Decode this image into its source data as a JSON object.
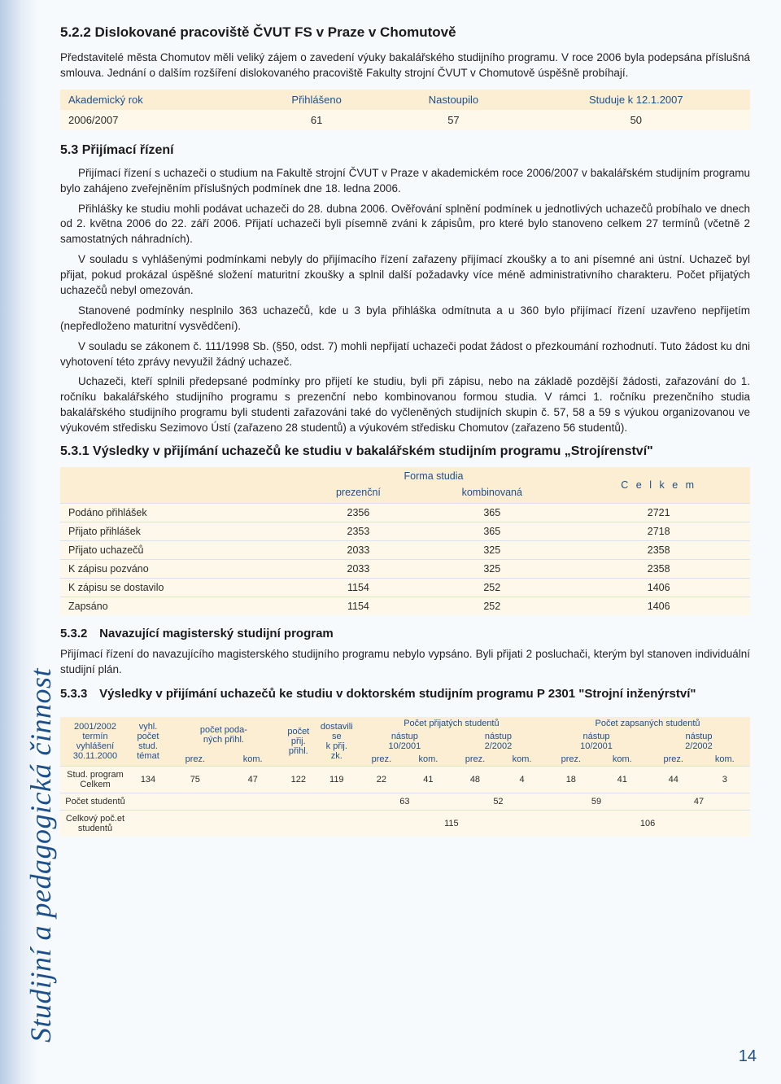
{
  "section522": {
    "title": "5.2.2 Dislokované pracoviště ČVUT FS v Praze v Chomutově",
    "p1": "Představitelé města Chomutov měli veliký zájem o zavedení výuky bakalářského studijního programu. V roce 2006 byla podepsána příslušná smlouva. Jednání o dalším rozšíření dislokovaného pracoviště Fakulty strojní ČVUT v Chomutově úspěšně probíhají."
  },
  "table1": {
    "headers": [
      "Akademický rok",
      "Přihlášeno",
      "Nastoupilo",
      "Studuje k 12.1.2007"
    ],
    "row": [
      "2006/2007",
      "61",
      "57",
      "50"
    ],
    "header_bg": "#fceed3",
    "body_bg": "#fdf8e9",
    "header_color": "#1d4f8b"
  },
  "section53": {
    "title": "5.3 Přijímací řízení",
    "p1": "Přijímací řízení s uchazeči o studium na Fakultě strojní ČVUT v Praze v akademickém roce 2006/2007 v bakalářském studijním programu bylo zahájeno zveřejněním příslušných podmínek dne 18. ledna 2006.",
    "p2": "Přihlášky ke studiu mohli podávat uchazeči do 28. dubna 2006. Ověřování splnění podmínek u jednotlivých uchazečů probíhalo ve dnech od 2. května 2006 do 22. září 2006. Přijatí uchazeči byli písemně zváni k zápisům, pro které bylo stanoveno celkem 27 termínů (včetně 2 samostatných náhradních).",
    "p3": "V souladu s vyhlášenými podmínkami nebyly do přijímacího řízení zařazeny přijímací zkoušky a to ani písemné ani ústní. Uchazeč byl přijat, pokud prokázal úspěšné složení maturitní zkoušky a splnil další požadavky více méně administrativního charakteru. Počet přijatých uchazečů nebyl omezován.",
    "p4": "Stanovené podmínky nesplnilo 363 uchazečů, kde u 3 byla přihláška odmítnuta a u 360 bylo přijímací řízení uzavřeno nepřijetím (nepředloženo maturitní vysvědčení).",
    "p5": "V souladu se zákonem č. 111/1998 Sb. (§50, odst. 7) mohli nepřijatí uchazeči podat žádost o přezkoumání rozhodnutí. Tuto žádost ku dni vyhotovení této zprávy nevyužil žádný uchazeč.",
    "p6": "Uchazeči, kteří splnili předepsané podmínky pro přijetí ke studiu, byli při zápisu, nebo na základě pozdější žádosti, zařazování do 1. ročníku bakalářského studijního programu s prezenční nebo kombinovanou formou studia. V rámci 1. ročníku prezenčního studia bakalářského studijního programu byli studenti zařazováni také do vyčleněných studijních skupin č. 57, 58 a 59 s výukou organizovanou ve výukovém středisku Sezimovo Ústí (zařazeno 28 studentů) a výukovém středisku Chomutov (zařazeno 56 studentů)."
  },
  "section531": {
    "title": "5.3.1 Výsledky v přijímání uchazečů ke studiu v bakalářském studijním programu „Strojírenství\""
  },
  "table2": {
    "group_label": "Forma studia",
    "celkem_label": "C e l k e m",
    "sub_headers": [
      "prezenční",
      "kombinovaná"
    ],
    "rows": [
      {
        "label": "Podáno přihlášek",
        "prez": "2356",
        "komb": "365",
        "cel": "2721"
      },
      {
        "label": "Přijato přihlášek",
        "prez": "2353",
        "komb": "365",
        "cel": "2718"
      },
      {
        "label": "Přijato uchazečů",
        "prez": "2033",
        "komb": "325",
        "cel": "2358"
      },
      {
        "label": "K zápisu pozváno",
        "prez": "2033",
        "komb": "325",
        "cel": "2358"
      },
      {
        "label": "K zápisu se dostavilo",
        "prez": "1154",
        "komb": "252",
        "cel": "1406"
      },
      {
        "label": "Zapsáno",
        "prez": "1154",
        "komb": "252",
        "cel": "1406"
      }
    ]
  },
  "section532": {
    "num": "5.3.2",
    "title": "Navazující magisterský studijní program",
    "p": "Přijímací řízení do navazujícího magisterského studijního programu nebylo vypsáno. Byli přijati 2 posluchači, kterým byl stanoven individuální studijní plán."
  },
  "section533": {
    "num": "5.3.3",
    "title": "Výsledky v přijímání uchazečů ke studiu v doktorském studijním programu P 2301 \"Strojní inženýrství\""
  },
  "table3": {
    "h": {
      "c1l1": "2001/2002",
      "c1l2": "termín vyhlášení",
      "c1l3": "30.11.2000",
      "c2l1": "vyhl.",
      "c2l2": "počet",
      "c2l3": "stud.",
      "c2l4": "témat",
      "c3l1": "počet poda-",
      "c3l2": "ných přihl.",
      "c3_prez": "prez.",
      "c3_kom": "kom.",
      "c4l1": "počet",
      "c4l2": "přij.",
      "c4l3": "přihl.",
      "c5l1": "dostavili",
      "c5l2": "se",
      "c5l3": "k přij.",
      "c5l4": "zk.",
      "c6": "Počet přijatých studentů",
      "c6a": "nástup",
      "c6a2": "10/2001",
      "c6b": "nástup",
      "c6b2": "2/2002",
      "c7": "Počet zapsaných studentů",
      "c7a": "nástup",
      "c7a2": "10/2001",
      "c7b": "nástup",
      "c7b2": "2/2002",
      "prez": "prez.",
      "kom": "kom."
    },
    "row_prog": {
      "label1": "Stud. program",
      "label2": "Celkem",
      "vals": [
        "134",
        "75",
        "47",
        "122",
        "119",
        "22",
        "41",
        "48",
        "4",
        "18",
        "41",
        "44",
        "3"
      ]
    },
    "row_pocet": {
      "label": "Počet studentů",
      "v1": "63",
      "v2": "52",
      "v3": "59",
      "v4": "47"
    },
    "row_celk": {
      "label1": "Celkový poč.et",
      "label2": "studentů",
      "v1": "115",
      "v2": "106"
    }
  },
  "sidebar_text": "Studijní a pedagogická činnost",
  "page_number": "14",
  "colors": {
    "accent": "#1d4f8b",
    "head_bg": "#fceed3",
    "body_bg": "#fdf8e9",
    "page_bg": "#f7fafd"
  }
}
